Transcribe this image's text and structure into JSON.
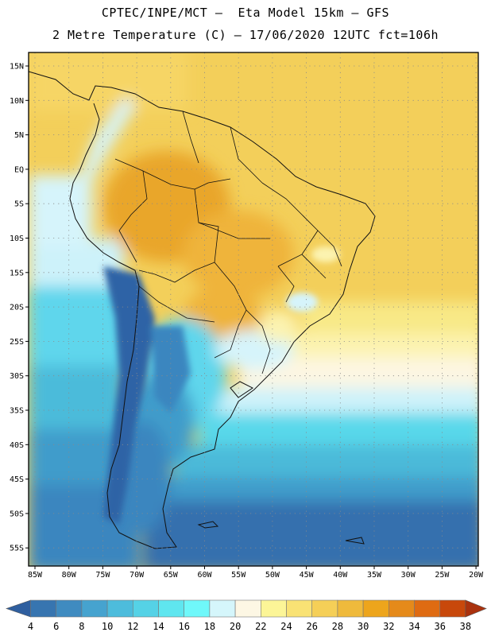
{
  "header": {
    "title": "CPTEC/INPE/MCT –  Eta Model 15km – GFS",
    "subtitle": "2 Metre Temperature (C) – 17/06/2020 12UTC fct=106h"
  },
  "map": {
    "lat_labels": [
      "15N",
      "10N",
      "5N",
      "EQ",
      "5S",
      "10S",
      "15S",
      "20S",
      "25S",
      "30S",
      "35S",
      "40S",
      "45S",
      "50S",
      "55S"
    ],
    "lon_labels": [
      "85W",
      "80W",
      "75W",
      "70W",
      "65W",
      "60W",
      "55W",
      "50W",
      "45W",
      "40W",
      "35W",
      "30W",
      "25W",
      "20W"
    ],
    "region": "South America",
    "grid": "dotted"
  },
  "colorbar": {
    "labels": [
      "4",
      "6",
      "8",
      "10",
      "12",
      "14",
      "16",
      "18",
      "20",
      "22",
      "24",
      "26",
      "28",
      "30",
      "32",
      "34",
      "36",
      "38"
    ],
    "colors": [
      "#2f5f9f",
      "#3775b0",
      "#3f8bc0",
      "#46a3cf",
      "#4dbcdc",
      "#55d2e6",
      "#5fe6ef",
      "#6ff8fa",
      "#d5f6fb",
      "#fdf7e4",
      "#fcf597",
      "#f9e274",
      "#f5cf57",
      "#efba3c",
      "#eda51c",
      "#e58a1a",
      "#df6b12",
      "#c8480b",
      "#aa320e"
    ]
  }
}
